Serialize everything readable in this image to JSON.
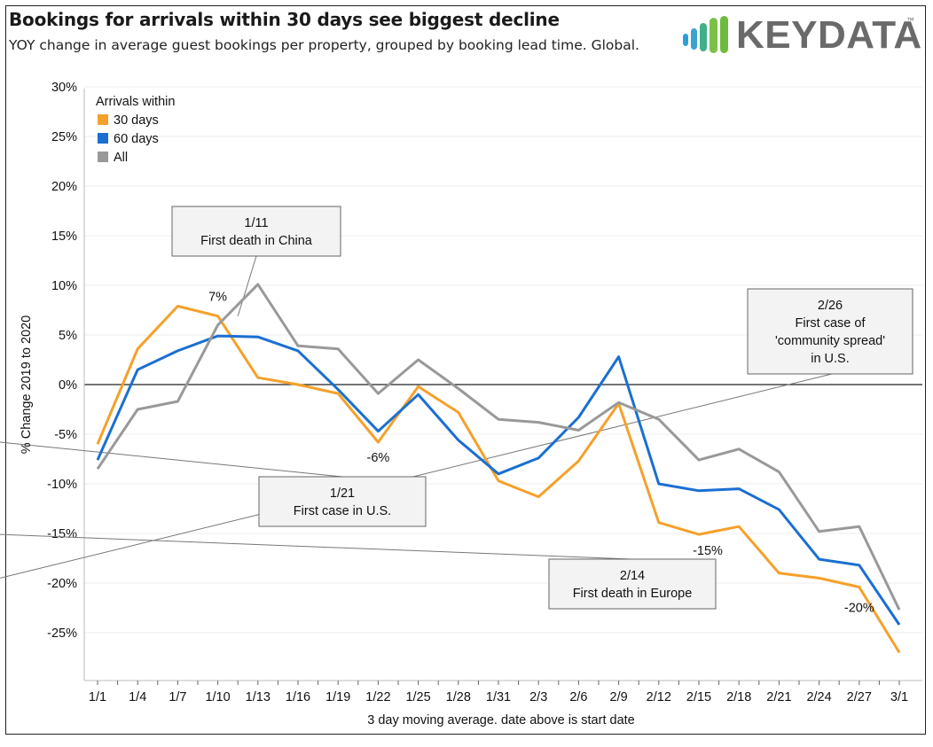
{
  "title": "Bookings for arrivals within 30 days see biggest decline",
  "subtitle": "YOY change in average guest bookings per property, grouped by booking lead time. Global.",
  "logo": {
    "text": "KEYDATA",
    "tm": "™",
    "icon": "bar-chart-logo-icon"
  },
  "colors": {
    "s30": "#F5A02A",
    "s60": "#1A6FD1",
    "all": "#999999",
    "grid": "#ececec",
    "zero": "#222222"
  },
  "chart_data": {
    "type": "line",
    "xlabel": "3 day moving average. date above is start date",
    "ylabel": "% Change 2019 to 2020",
    "ylim": [
      -30,
      30
    ],
    "yticks": [
      30,
      25,
      20,
      15,
      10,
      5,
      0,
      -5,
      -10,
      -15,
      -20,
      -25
    ],
    "ytick_labels": [
      "30%",
      "25%",
      "20%",
      "15%",
      "10%",
      "5%",
      "0%",
      "-5%",
      "-10%",
      "-15%",
      "-20%",
      "-25%"
    ],
    "x": [
      "1/1",
      "1/2",
      "1/4",
      "1/5",
      "1/7",
      "1/8",
      "1/10",
      "1/11",
      "1/13",
      "1/14",
      "1/16",
      "1/17",
      "1/19",
      "1/20",
      "1/22",
      "1/23",
      "1/25",
      "1/26",
      "1/28",
      "1/29",
      "1/31",
      "2/1",
      "2/3",
      "2/4",
      "2/6",
      "2/7",
      "2/9",
      "2/10",
      "2/12",
      "2/13",
      "2/15",
      "2/16",
      "2/18",
      "2/19",
      "2/21",
      "2/22",
      "2/24",
      "2/25",
      "2/27",
      "2/28",
      "3/1"
    ],
    "xtick_labels": [
      "1/1",
      "1/4",
      "1/7",
      "1/10",
      "1/13",
      "1/16",
      "1/19",
      "1/22",
      "1/25",
      "1/28",
      "1/31",
      "2/3",
      "2/6",
      "2/9",
      "2/12",
      "2/15",
      "2/18",
      "2/21",
      "2/24",
      "2/27",
      "3/1"
    ],
    "legend_title": "Arrivals within",
    "legend_position": "top-left",
    "series": [
      {
        "name": "30 days",
        "color_key": "s30",
        "points": [
          [
            "1/1",
            -6
          ],
          [
            "1/4",
            3.6
          ],
          [
            "1/7",
            7.9
          ],
          [
            "1/10",
            6.9
          ],
          [
            "1/13",
            0.7
          ],
          [
            "1/16",
            0
          ],
          [
            "1/19",
            -0.9
          ],
          [
            "1/22",
            -5.8
          ],
          [
            "1/25",
            -0.2
          ],
          [
            "1/28",
            -2.8
          ],
          [
            "1/31",
            -9.7
          ],
          [
            "2/3",
            -11.3
          ],
          [
            "2/6",
            -7.7
          ],
          [
            "2/9",
            -1.9
          ],
          [
            "2/12",
            -13.9
          ],
          [
            "2/15",
            -15.1
          ],
          [
            "2/18",
            -14.3
          ],
          [
            "2/21",
            -19
          ],
          [
            "2/24",
            -19.5
          ],
          [
            "2/27",
            -20.4
          ],
          [
            "3/1",
            -27
          ]
        ]
      },
      {
        "name": "60 days",
        "color_key": "s60",
        "points": [
          [
            "1/1",
            -7.6
          ],
          [
            "1/4",
            1.5
          ],
          [
            "1/7",
            3.4
          ],
          [
            "1/10",
            4.9
          ],
          [
            "1/13",
            4.8
          ],
          [
            "1/16",
            3.4
          ],
          [
            "1/19",
            -0.5
          ],
          [
            "1/22",
            -4.7
          ],
          [
            "1/25",
            -1
          ],
          [
            "1/28",
            -5.6
          ],
          [
            "1/31",
            -9
          ],
          [
            "2/3",
            -7.4
          ],
          [
            "2/6",
            -3.3
          ],
          [
            "2/9",
            2.8
          ],
          [
            "2/12",
            -10
          ],
          [
            "2/15",
            -10.7
          ],
          [
            "2/18",
            -10.5
          ],
          [
            "2/21",
            -12.6
          ],
          [
            "2/24",
            -17.6
          ],
          [
            "2/27",
            -18.2
          ],
          [
            "3/1",
            -24.2
          ]
        ]
      },
      {
        "name": "All",
        "color_key": "all",
        "points": [
          [
            "1/1",
            -8.5
          ],
          [
            "1/4",
            -2.5
          ],
          [
            "1/7",
            -1.7
          ],
          [
            "1/10",
            6
          ],
          [
            "1/13",
            10.1
          ],
          [
            "1/16",
            3.9
          ],
          [
            "1/19",
            3.6
          ],
          [
            "1/22",
            -0.9
          ],
          [
            "1/25",
            2.5
          ],
          [
            "1/28",
            -0.4
          ],
          [
            "1/31",
            -3.5
          ],
          [
            "2/3",
            -3.8
          ],
          [
            "2/6",
            -4.6
          ],
          [
            "2/9",
            -1.8
          ],
          [
            "2/12",
            -3.5
          ],
          [
            "2/15",
            -7.6
          ],
          [
            "2/18",
            -6.5
          ],
          [
            "2/21",
            -8.8
          ],
          [
            "2/24",
            -14.8
          ],
          [
            "2/27",
            -14.3
          ],
          [
            "3/1",
            -22.7
          ]
        ]
      }
    ],
    "data_labels": [
      {
        "text": "7%",
        "x": "1/10",
        "y": 6.9
      },
      {
        "text": "-6%",
        "x": "1/22",
        "y": -5.8
      },
      {
        "text": "-15%",
        "x": "2/15",
        "y": -15.1
      },
      {
        "text": "-20%",
        "x": "2/27",
        "y": -20.4
      }
    ],
    "annotations": [
      {
        "lines": [
          "1/11",
          "First death in China"
        ],
        "x": "1/11",
        "y": 6.9
      },
      {
        "lines": [
          "1/21",
          "First case in U.S."
        ],
        "x": "1/21",
        "y": -5.8
      },
      {
        "lines": [
          "2/14",
          "First death in Europe"
        ],
        "x": "2/14",
        "y": -15.1
      },
      {
        "lines": [
          "2/26",
          "First case of",
          "'community spread'",
          "in U.S."
        ],
        "x": "2/26",
        "y": -19.5
      }
    ]
  }
}
